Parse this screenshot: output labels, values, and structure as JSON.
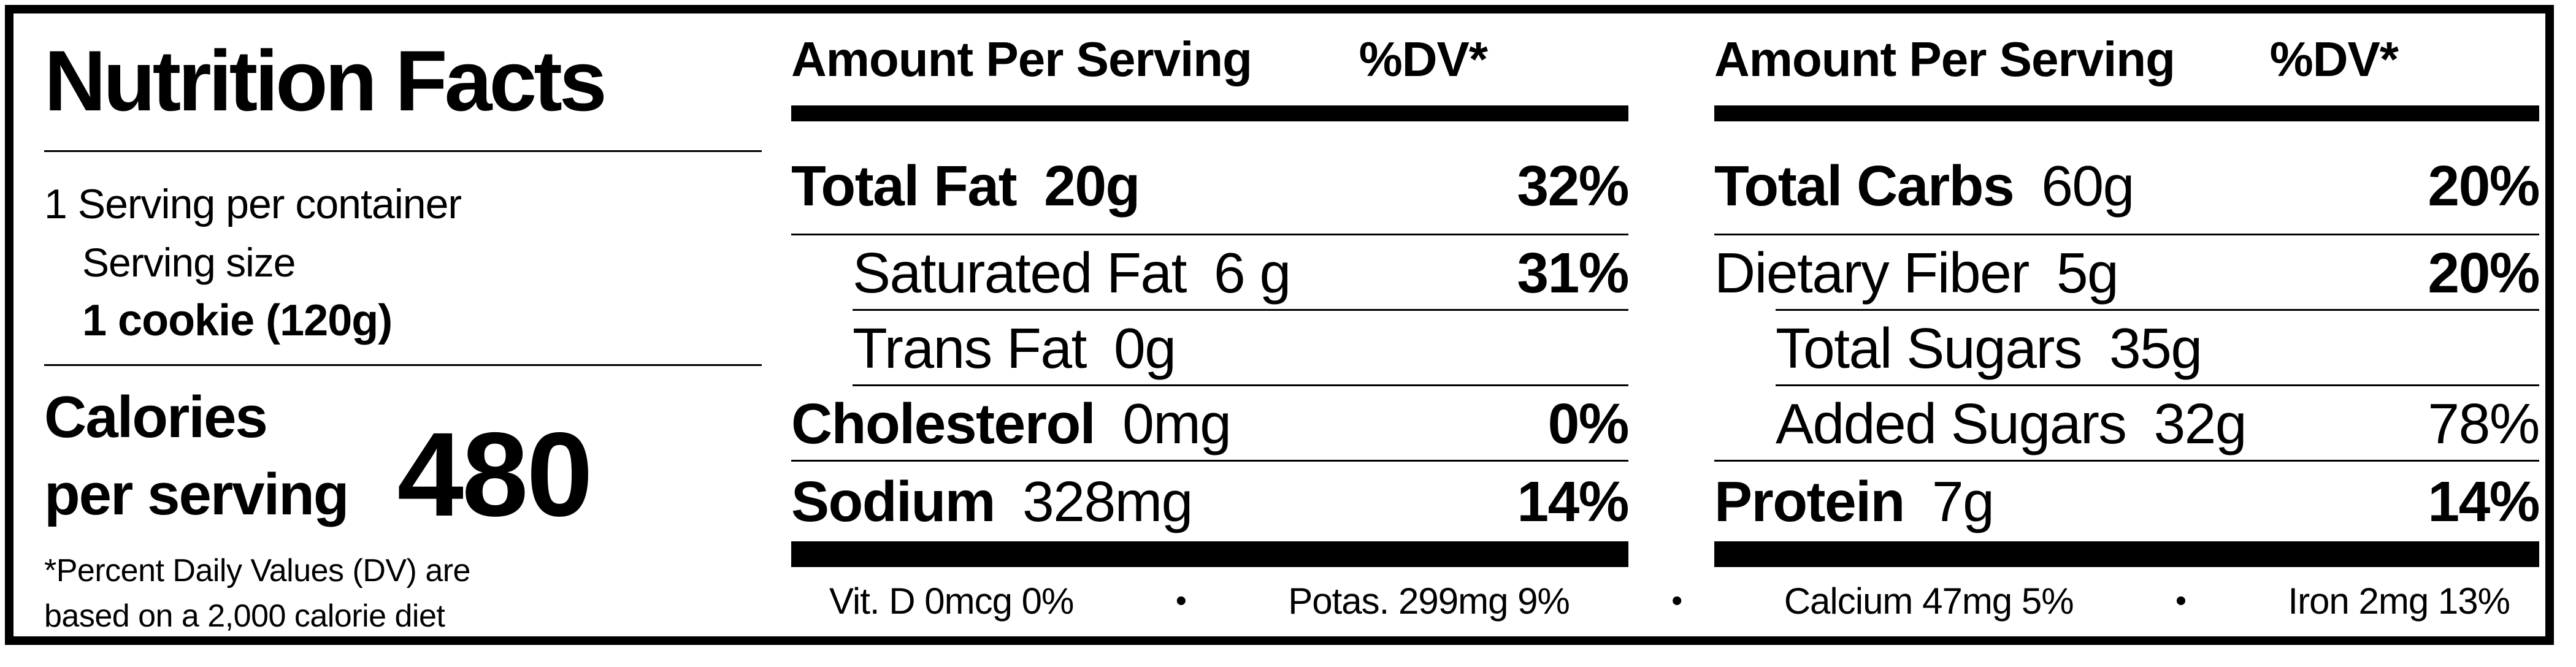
{
  "colors": {
    "ink": "#000000",
    "paper": "#ffffff"
  },
  "left": {
    "title": "Nutrition Facts",
    "servings_per_container": "1 Serving per container",
    "serving_size_label": "Serving size",
    "serving_size_value": "1 cookie (120g)",
    "calories_line1": "Calories",
    "calories_line2": "per serving",
    "calories_value": "480",
    "footnote_line1": "*Percent Daily Values (DV) are",
    "footnote_line2": "based on a 2,000 calorie diet"
  },
  "mid_column": {
    "header": {
      "amount_label": "Amount Per Serving",
      "dv_label": "%DV*"
    },
    "rows": [
      {
        "label": "Total Fat",
        "amount": "20g",
        "dv": "32%",
        "label_bold": true,
        "amount_bold": true,
        "dv_bold": true,
        "rule": "full"
      },
      {
        "label": "Saturated Fat",
        "amount": "6 g",
        "dv": "31%",
        "indent": true,
        "dv_bold": true,
        "rule": "inset"
      },
      {
        "label": "Trans Fat",
        "amount": "0g",
        "dv": "",
        "indent": true,
        "rule": "inset"
      },
      {
        "label": "Cholesterol",
        "amount": "0mg",
        "dv": "0%",
        "label_bold": true,
        "dv_bold": true,
        "rule": "full"
      },
      {
        "label": "Sodium",
        "amount": "328mg",
        "dv": "14%",
        "label_bold": true,
        "dv_bold": true,
        "rule": "none"
      }
    ]
  },
  "right_column": {
    "header": {
      "amount_label": "Amount Per Serving",
      "dv_label": "%DV*"
    },
    "rows": [
      {
        "label": "Total Carbs",
        "amount": "60g",
        "dv": "20%",
        "label_bold": true,
        "dv_bold": true,
        "rule": "full"
      },
      {
        "label": "Dietary Fiber",
        "amount": "5g",
        "dv": "20%",
        "dv_bold": true,
        "rule": "inset"
      },
      {
        "label": "Total Sugars",
        "amount": "35g",
        "dv": "",
        "indent": true,
        "rule": "inset"
      },
      {
        "label": "Added Sugars",
        "amount": "32g",
        "dv": "78%",
        "indent": true,
        "rule": "full"
      },
      {
        "label": "Protein",
        "amount": "7g",
        "dv": "14%",
        "label_bold": true,
        "dv_bold": true,
        "rule": "none"
      }
    ]
  },
  "micro_bullet": "•",
  "micronutrients": [
    "Vit. D 0mcg  0%",
    "Potas. 299mg  9%",
    "Calcium 47mg  5%",
    "Iron 2mg 13%"
  ]
}
